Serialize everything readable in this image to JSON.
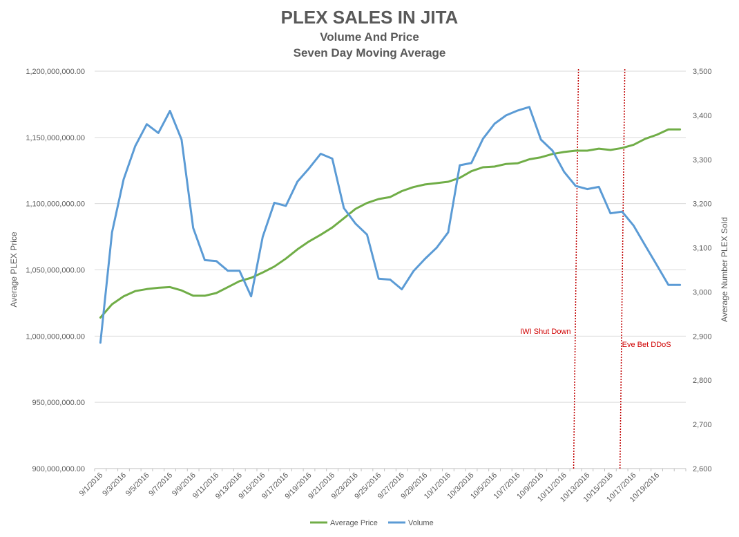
{
  "chart_data": {
    "type": "line",
    "title": "PLEX SALES IN JITA",
    "subtitle_lines": [
      "Volume And Price",
      "Seven Day Moving Average"
    ],
    "ylabel_left": "Average PLEX Price",
    "ylabel_right": "Average Number PLEX Sold",
    "left_axis": {
      "min": 900000000,
      "max": 1200000000,
      "step": 50000000,
      "tick_labels": [
        "900,000,000.00",
        "950,000,000.00",
        "1,000,000,000.00",
        "1,050,000,000.00",
        "1,100,000,000.00",
        "1,150,000,000.00",
        "1,200,000,000.00"
      ]
    },
    "right_axis": {
      "min": 2600,
      "max": 3500,
      "step": 100,
      "tick_labels": [
        "2,600",
        "2,700",
        "2,800",
        "2,900",
        "3,000",
        "3,100",
        "3,200",
        "3,300",
        "3,400",
        "3,500"
      ]
    },
    "x": [
      "9/1/2016",
      "9/2/2016",
      "9/3/2016",
      "9/4/2016",
      "9/5/2016",
      "9/6/2016",
      "9/7/2016",
      "9/8/2016",
      "9/9/2016",
      "9/10/2016",
      "9/11/2016",
      "9/12/2016",
      "9/13/2016",
      "9/14/2016",
      "9/15/2016",
      "9/16/2016",
      "9/17/2016",
      "9/18/2016",
      "9/19/2016",
      "9/20/2016",
      "9/21/2016",
      "9/22/2016",
      "9/23/2016",
      "9/24/2016",
      "9/25/2016",
      "9/26/2016",
      "9/27/2016",
      "9/28/2016",
      "9/29/2016",
      "9/30/2016",
      "10/1/2016",
      "10/2/2016",
      "10/3/2016",
      "10/4/2016",
      "10/5/2016",
      "10/6/2016",
      "10/7/2016",
      "10/8/2016",
      "10/9/2016",
      "10/10/2016",
      "10/11/2016",
      "10/12/2016",
      "10/13/2016",
      "10/14/2016",
      "10/15/2016",
      "10/16/2016",
      "10/17/2016",
      "10/18/2016",
      "10/19/2016",
      "10/20/2016",
      "10/21/2016"
    ],
    "x_tick_labels": [
      "9/1/2016",
      "9/3/2016",
      "9/5/2016",
      "9/7/2016",
      "9/9/2016",
      "9/11/2016",
      "9/13/2016",
      "9/15/2016",
      "9/17/2016",
      "9/19/2016",
      "9/21/2016",
      "9/23/2016",
      "9/25/2016",
      "9/27/2016",
      "9/29/2016",
      "10/1/2016",
      "10/3/2016",
      "10/5/2016",
      "10/7/2016",
      "10/9/2016",
      "10/11/2016",
      "10/13/2016",
      "10/15/2016",
      "10/17/2016",
      "10/19/2016"
    ],
    "series": [
      {
        "name": "Average Price",
        "axis": "left",
        "color": "#70ad47",
        "values": [
          1014000000,
          1024000000,
          1030000000,
          1034000000,
          1035500000,
          1036500000,
          1037000000,
          1034500000,
          1030500000,
          1030500000,
          1032500000,
          1037000000,
          1041500000,
          1044000000,
          1048000000,
          1052500000,
          1058500000,
          1065500000,
          1071500000,
          1076500000,
          1082000000,
          1089000000,
          1096000000,
          1100500000,
          1103500000,
          1105000000,
          1109500000,
          1112500000,
          1114500000,
          1115500000,
          1116500000,
          1119500000,
          1124500000,
          1127500000,
          1128000000,
          1130000000,
          1130500000,
          1133500000,
          1135000000,
          1137500000,
          1139000000,
          1140000000,
          1140000000,
          1141500000,
          1140500000,
          1142000000,
          1144500000,
          1149000000,
          1152000000,
          1156000000,
          1156000000
        ]
      },
      {
        "name": "Volume",
        "axis": "right",
        "color": "#5b9bd5",
        "values": [
          2885,
          3135,
          3255,
          3330,
          3380,
          3360,
          3410,
          3345,
          3145,
          3072,
          3070,
          3048,
          3048,
          2990,
          3125,
          3202,
          3195,
          3250,
          3280,
          3313,
          3302,
          3190,
          3155,
          3130,
          3030,
          3028,
          3006,
          3047,
          3075,
          3100,
          3135,
          3287,
          3292,
          3347,
          3381,
          3400,
          3411,
          3419,
          3345,
          3320,
          3272,
          3240,
          3233,
          3238,
          3178,
          3182,
          3150,
          3105,
          3061,
          3016,
          3016
        ]
      }
    ],
    "annotations": [
      {
        "label": "IWI Shut Down",
        "date": "10/12/2016"
      },
      {
        "label": "Eve Bet DDoS",
        "date": "10/16/2016"
      }
    ],
    "grid": true,
    "legend_position": "bottom"
  }
}
